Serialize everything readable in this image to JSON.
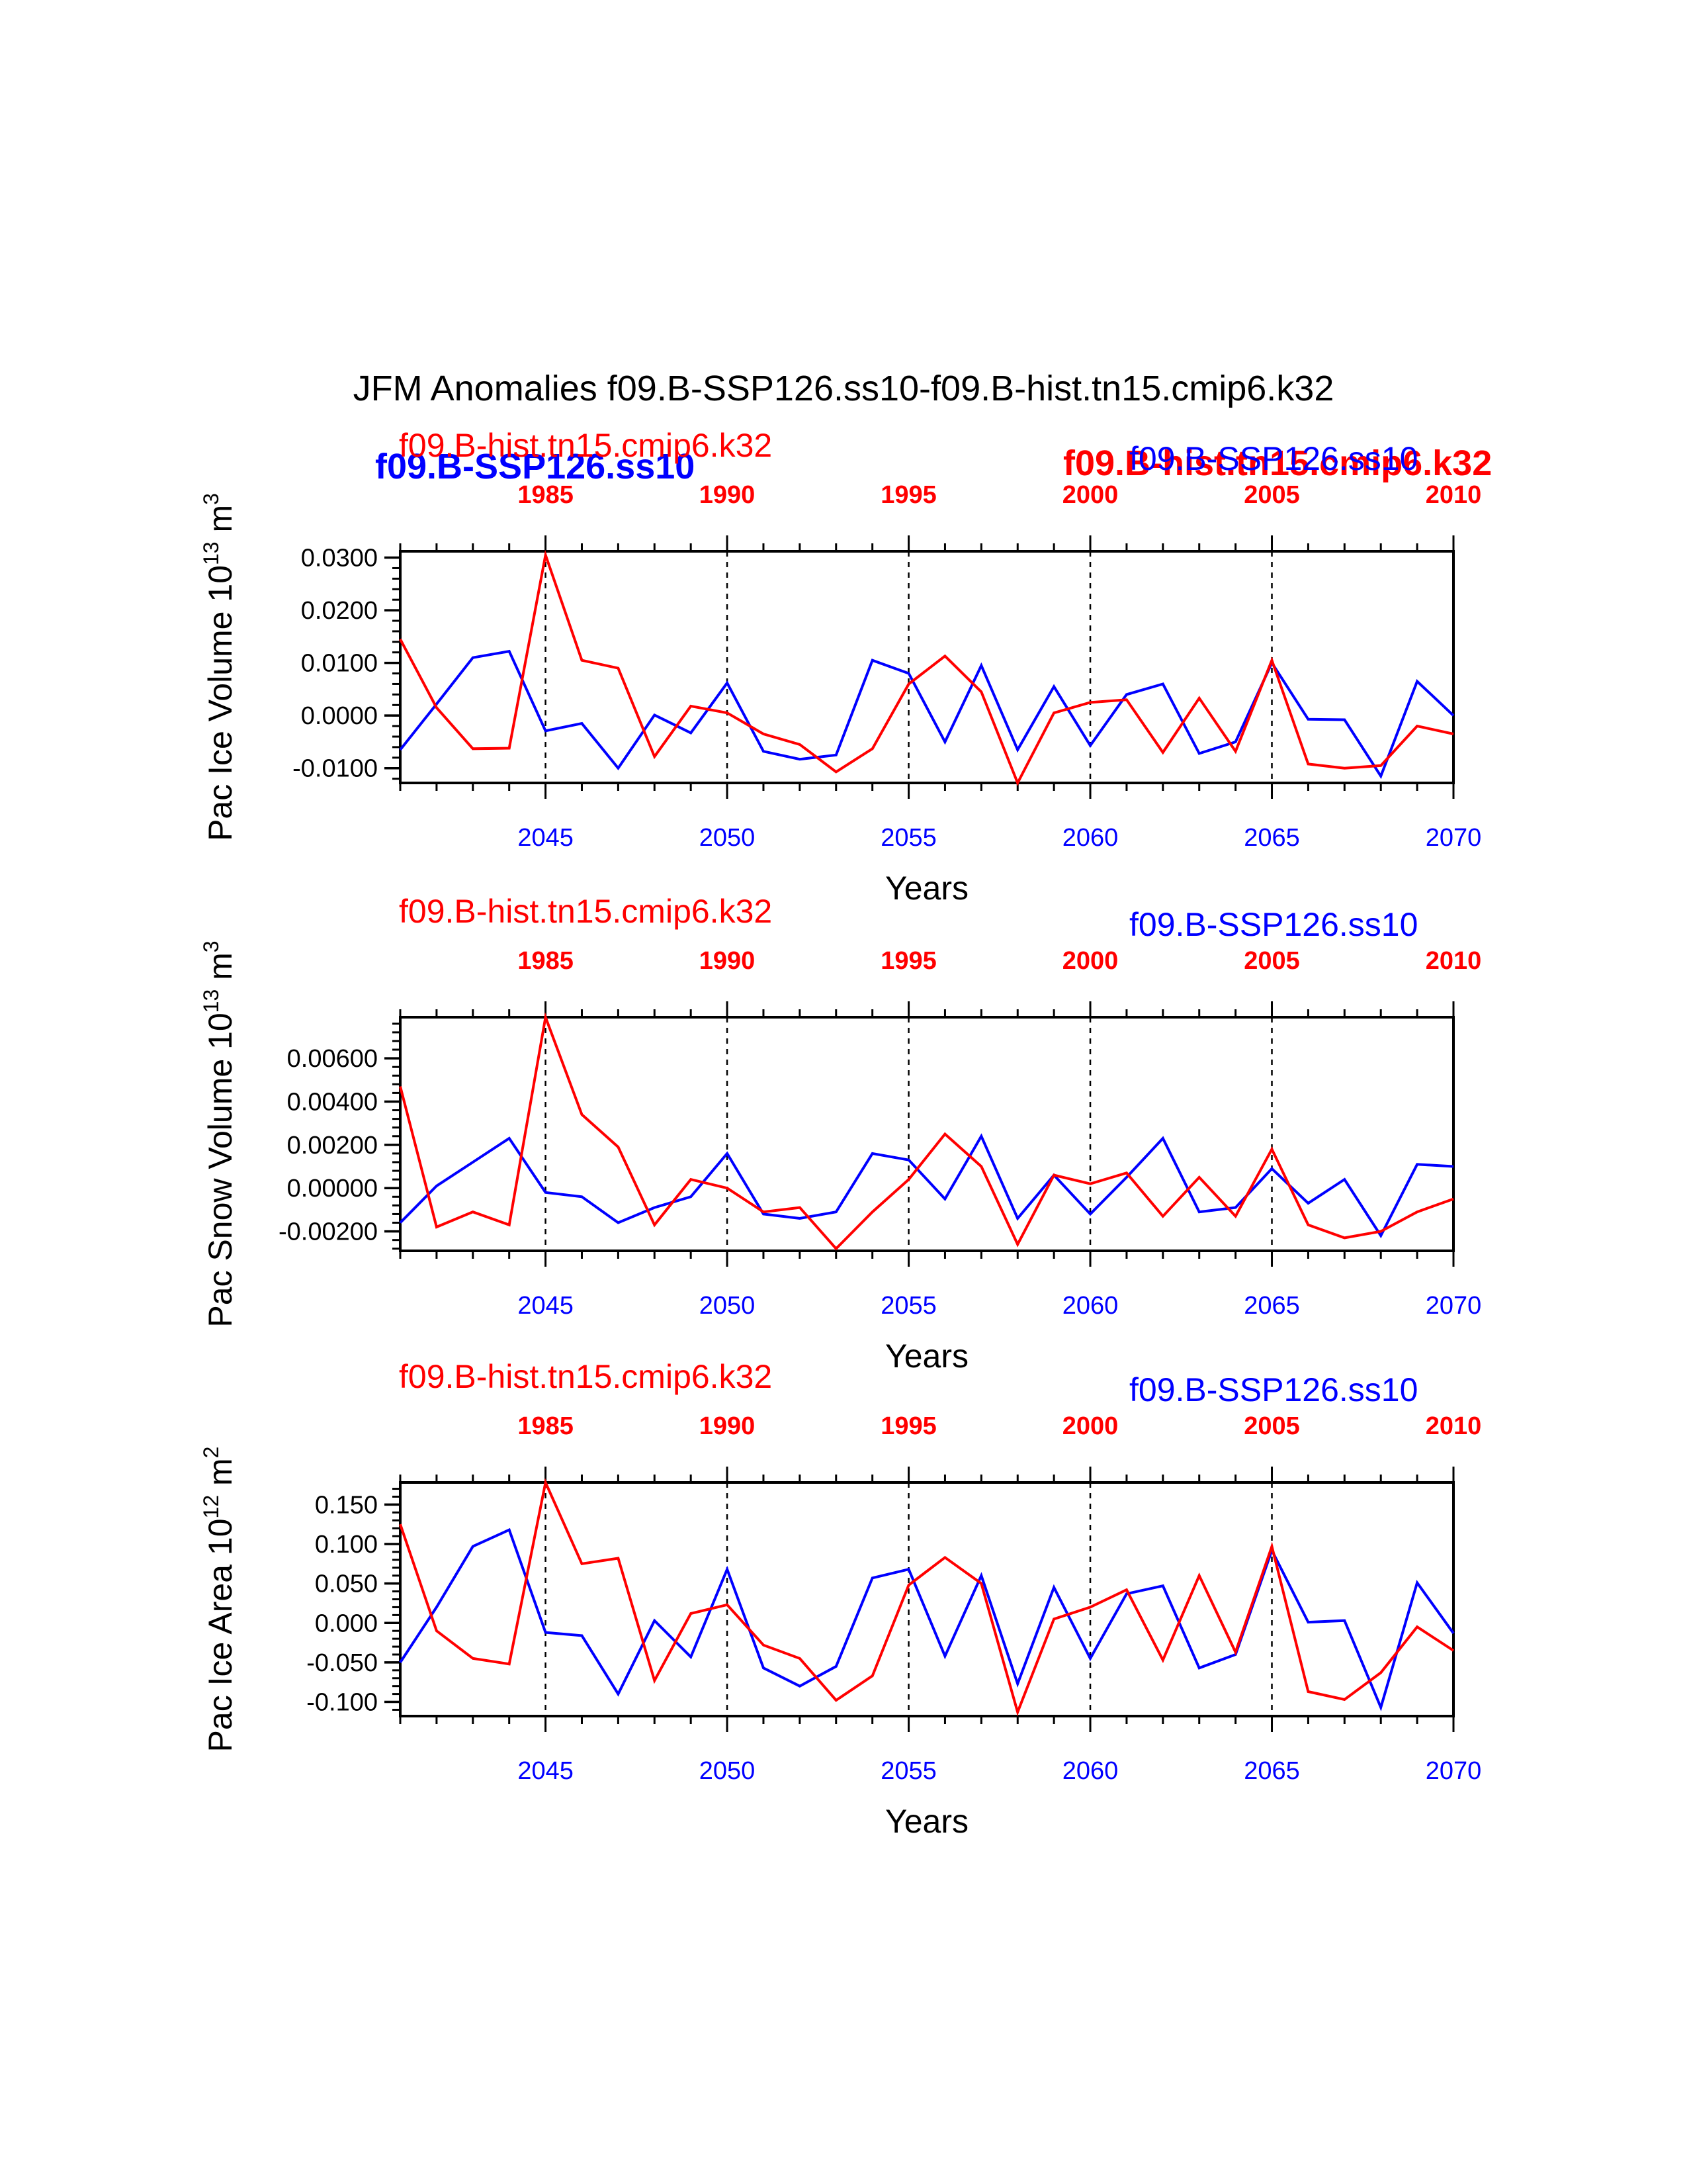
{
  "title": "JFM Anomalies f09.B-SSP126.ss10-f09.B-hist.tn15.cmip6.k32",
  "colors": {
    "ssp": "#0000ff",
    "hist": "#ff0000",
    "axis": "#000000"
  },
  "overlay_labels": [
    {
      "text": "f09.B-SSP126.ss10",
      "color": "#0000ff"
    },
    {
      "text": "f09.B-hist.tn15.cmip6.k32",
      "color": "#ff0000"
    }
  ],
  "chart_data": [
    {
      "type": "line",
      "ylabel": "Pac Ice Volume 10",
      "ylabel_exp": "13",
      "ylabel_unit": " m",
      "ylabel_unit_exp": "3",
      "xlabel": "Years",
      "ylim": [
        -0.0128,
        0.0312
      ],
      "yticks": [
        "0.0300",
        "0.0200",
        "0.0100",
        "0.0000",
        "-0.0100"
      ],
      "ytick_values": [
        0.03,
        0.02,
        0.01,
        0.0,
        -0.01
      ],
      "ylabels_top": "f09.B-hist.tn15.cmip6.k32",
      "ylabels_right": "f09.B-SSP126.ss10",
      "bottom_axis": {
        "label": "f09.B-SSP126.ss10",
        "range": [
          2041,
          2070
        ],
        "ticks": [
          "2045",
          "2050",
          "2055",
          "2060",
          "2065",
          "2070"
        ]
      },
      "top_axis": {
        "label": "f09.B-hist.tn15.cmip6.k32",
        "range": [
          1981,
          2010
        ],
        "ticks": [
          "1985",
          "1990",
          "1995",
          "2000",
          "2005",
          "2010"
        ]
      },
      "series": [
        {
          "name": "f09.B-SSP126.ss10",
          "color": "#0000ff",
          "x": [
            2041,
            2042,
            2043,
            2044,
            2045,
            2046,
            2047,
            2048,
            2049,
            2050,
            2051,
            2052,
            2053,
            2054,
            2055,
            2056,
            2057,
            2058,
            2059,
            2060,
            2061,
            2062,
            2063,
            2064,
            2065,
            2066,
            2067,
            2068,
            2069,
            2070
          ],
          "values": [
            -0.0065,
            0.0022,
            0.011,
            0.0122,
            -0.0029,
            -0.0015,
            -0.01,
            0.0001,
            -0.0033,
            0.0062,
            -0.0068,
            -0.0083,
            -0.0075,
            0.0105,
            0.008,
            -0.005,
            0.0095,
            -0.0065,
            0.0055,
            -0.0057,
            0.004,
            0.006,
            -0.0072,
            -0.005,
            0.01,
            -0.0007,
            -0.0008,
            -0.0115,
            0.0065,
            0.0
          ]
        },
        {
          "name": "f09.B-hist.tn15.cmip6.k32",
          "color": "#ff0000",
          "x": [
            1981,
            1982,
            1983,
            1984,
            1985,
            1986,
            1987,
            1988,
            1989,
            1990,
            1991,
            1992,
            1993,
            1994,
            1995,
            1996,
            1997,
            1998,
            1999,
            2000,
            2001,
            2002,
            2003,
            2004,
            2005,
            2006,
            2007,
            2008,
            2009,
            2010
          ],
          "values": [
            0.0145,
            0.0015,
            -0.0063,
            -0.0062,
            0.0305,
            0.0105,
            0.009,
            -0.0078,
            0.0018,
            0.0005,
            -0.0035,
            -0.0055,
            -0.0107,
            -0.0063,
            0.006,
            0.0113,
            0.0045,
            -0.0128,
            0.0005,
            0.0025,
            0.003,
            -0.007,
            0.0033,
            -0.0068,
            0.0105,
            -0.0092,
            -0.01,
            -0.0095,
            -0.002,
            -0.0035
          ]
        }
      ]
    },
    {
      "type": "line",
      "ylabel": "Pac Snow Volume 10",
      "ylabel_exp": "13",
      "ylabel_unit": " m",
      "ylabel_unit_exp": "3",
      "xlabel": "Years",
      "ylim": [
        -0.0029,
        0.0079
      ],
      "yticks": [
        "0.00600",
        "0.00400",
        "0.00200",
        "0.00000",
        "-0.00200"
      ],
      "ytick_values": [
        0.006,
        0.004,
        0.002,
        0.0,
        -0.002
      ],
      "ylabels_top": "f09.B-hist.tn15.cmip6.k32",
      "ylabels_right": "f09.B-SSP126.ss10",
      "bottom_axis": {
        "label": "f09.B-SSP126.ss10",
        "range": [
          2041,
          2070
        ],
        "ticks": [
          "2045",
          "2050",
          "2055",
          "2060",
          "2065",
          "2070"
        ]
      },
      "top_axis": {
        "label": "f09.B-hist.tn15.cmip6.k32",
        "range": [
          1981,
          2010
        ],
        "ticks": [
          "1985",
          "1990",
          "1995",
          "2000",
          "2005",
          "2010"
        ]
      },
      "series": [
        {
          "name": "f09.B-SSP126.ss10",
          "color": "#0000ff",
          "x": [
            2041,
            2042,
            2043,
            2044,
            2045,
            2046,
            2047,
            2048,
            2049,
            2050,
            2051,
            2052,
            2053,
            2054,
            2055,
            2056,
            2057,
            2058,
            2059,
            2060,
            2061,
            2062,
            2063,
            2064,
            2065,
            2066,
            2067,
            2068,
            2069,
            2070
          ],
          "values": [
            -0.0016,
            0.0001,
            0.0012,
            0.0023,
            -0.0002,
            -0.0004,
            -0.0016,
            -0.0009,
            -0.0004,
            0.0016,
            -0.0012,
            -0.0014,
            -0.0011,
            0.0016,
            0.0013,
            -0.0005,
            0.0024,
            -0.0014,
            0.0006,
            -0.0012,
            0.0005,
            0.0023,
            -0.0011,
            -0.0009,
            0.0009,
            -0.0007,
            0.0004,
            -0.0022,
            0.0011,
            0.001
          ]
        },
        {
          "name": "f09.B-hist.tn15.cmip6.k32",
          "color": "#ff0000",
          "x": [
            1981,
            1982,
            1983,
            1984,
            1985,
            1986,
            1987,
            1988,
            1989,
            1990,
            1991,
            1992,
            1993,
            1994,
            1995,
            1996,
            1997,
            1998,
            1999,
            2000,
            2001,
            2002,
            2003,
            2004,
            2005,
            2006,
            2007,
            2008,
            2009,
            2010
          ],
          "values": [
            0.0047,
            -0.0018,
            -0.0011,
            -0.0017,
            0.0079,
            0.0034,
            0.0019,
            -0.0017,
            0.0004,
            0.0,
            -0.0011,
            -0.0009,
            -0.0028,
            -0.0011,
            0.0004,
            0.0025,
            0.001,
            -0.0026,
            0.0006,
            0.0002,
            0.0007,
            -0.0013,
            0.0005,
            -0.0013,
            0.0018,
            -0.0017,
            -0.0023,
            -0.002,
            -0.0011,
            -0.0005
          ]
        }
      ]
    },
    {
      "type": "line",
      "ylabel": "Pac Ice Area 10",
      "ylabel_exp": "12",
      "ylabel_unit": " m",
      "ylabel_unit_exp": "2",
      "xlabel": "Years",
      "ylim": [
        -0.118,
        0.178
      ],
      "yticks": [
        "0.150",
        "0.100",
        "0.050",
        "0.000",
        "-0.050",
        "-0.100"
      ],
      "ytick_values": [
        0.15,
        0.1,
        0.05,
        0.0,
        -0.05,
        -0.1
      ],
      "ylabels_top": "f09.B-hist.tn15.cmip6.k32",
      "ylabels_right": "f09.B-SSP126.ss10",
      "bottom_axis": {
        "label": "f09.B-SSP126.ss10",
        "range": [
          2041,
          2070
        ],
        "ticks": [
          "2045",
          "2050",
          "2055",
          "2060",
          "2065",
          "2070"
        ]
      },
      "top_axis": {
        "label": "f09.B-hist.tn15.cmip6.k32",
        "range": [
          1981,
          2010
        ],
        "ticks": [
          "1985",
          "1990",
          "1995",
          "2000",
          "2005",
          "2010"
        ]
      },
      "series": [
        {
          "name": "f09.B-SSP126.ss10",
          "color": "#0000ff",
          "x": [
            2041,
            2042,
            2043,
            2044,
            2045,
            2046,
            2047,
            2048,
            2049,
            2050,
            2051,
            2052,
            2053,
            2054,
            2055,
            2056,
            2057,
            2058,
            2059,
            2060,
            2061,
            2062,
            2063,
            2064,
            2065,
            2066,
            2067,
            2068,
            2069,
            2070
          ],
          "values": [
            -0.05,
            0.02,
            0.097,
            0.118,
            -0.012,
            -0.016,
            -0.09,
            0.003,
            -0.043,
            0.068,
            -0.057,
            -0.08,
            -0.055,
            0.057,
            0.068,
            -0.042,
            0.06,
            -0.077,
            0.045,
            -0.045,
            0.037,
            0.047,
            -0.057,
            -0.04,
            0.092,
            0.001,
            0.003,
            -0.107,
            0.051,
            -0.013
          ]
        },
        {
          "name": "f09.B-hist.tn15.cmip6.k32",
          "color": "#ff0000",
          "x": [
            1981,
            1982,
            1983,
            1984,
            1985,
            1986,
            1987,
            1988,
            1989,
            1990,
            1991,
            1992,
            1993,
            1994,
            1995,
            1996,
            1997,
            1998,
            1999,
            2000,
            2001,
            2002,
            2003,
            2004,
            2005,
            2006,
            2007,
            2008,
            2009,
            2010
          ],
          "values": [
            0.125,
            -0.01,
            -0.045,
            -0.052,
            0.178,
            0.075,
            0.082,
            -0.073,
            0.012,
            0.023,
            -0.028,
            -0.045,
            -0.098,
            -0.067,
            0.048,
            0.083,
            0.05,
            -0.113,
            0.005,
            0.02,
            0.042,
            -0.047,
            0.06,
            -0.037,
            0.097,
            -0.087,
            -0.097,
            -0.063,
            -0.005,
            -0.035
          ]
        }
      ]
    }
  ]
}
